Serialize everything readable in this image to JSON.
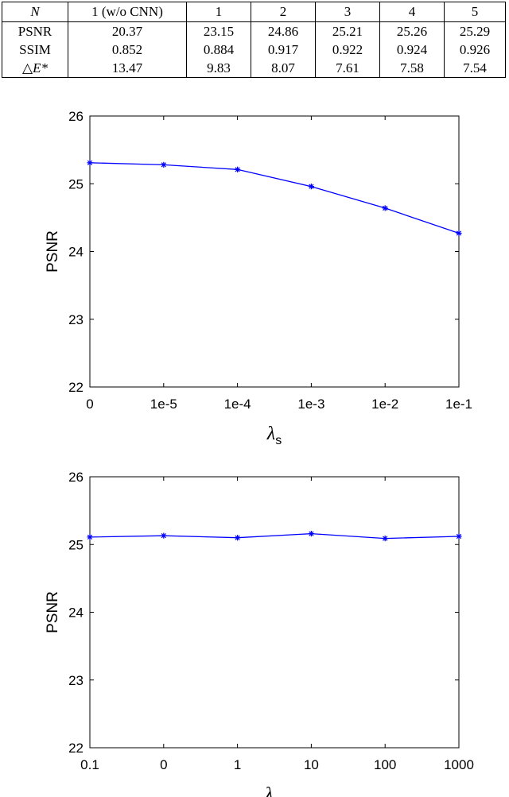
{
  "table": {
    "headers": [
      "N",
      "1 (w/o CNN)",
      "1",
      "2",
      "3",
      "4",
      "5"
    ],
    "rows": [
      {
        "label": "PSNR",
        "values": [
          "20.37",
          "23.15",
          "24.86",
          "25.21",
          "25.26",
          "25.29"
        ]
      },
      {
        "label": "SSIM",
        "values": [
          "0.852",
          "0.884",
          "0.917",
          "0.922",
          "0.924",
          "0.926"
        ]
      },
      {
        "label": "△E*",
        "values": [
          "13.47",
          "9.83",
          "8.07",
          "7.61",
          "7.58",
          "7.54"
        ]
      }
    ]
  },
  "chart_data": [
    {
      "type": "line",
      "x": [
        "0",
        "1e-5",
        "1e-4",
        "1e-3",
        "1e-2",
        "1e-1"
      ],
      "series": [
        {
          "values": [
            25.31,
            25.28,
            25.21,
            24.96,
            24.64,
            24.27
          ]
        }
      ],
      "xlabel": "λs",
      "xlabel_main": "λ",
      "xlabel_sub": "s",
      "ylabel": "PSNR",
      "ylim": [
        22,
        26
      ],
      "yticks": [
        "22",
        "23",
        "24",
        "25",
        "26"
      ],
      "color": "#0000ff",
      "marker": "asterisk",
      "grid": false
    },
    {
      "type": "line",
      "x": [
        "0.1",
        "0",
        "1",
        "10",
        "100",
        "1000"
      ],
      "series": [
        {
          "values": [
            25.11,
            25.13,
            25.1,
            25.16,
            25.09,
            25.12
          ]
        }
      ],
      "xlabel": "λm",
      "xlabel_main": "λ",
      "xlabel_sub": "m",
      "ylabel": "PSNR",
      "ylim": [
        22,
        26
      ],
      "yticks": [
        "22",
        "23",
        "24",
        "25",
        "26"
      ],
      "color": "#0000ff",
      "marker": "asterisk",
      "grid": false
    }
  ]
}
